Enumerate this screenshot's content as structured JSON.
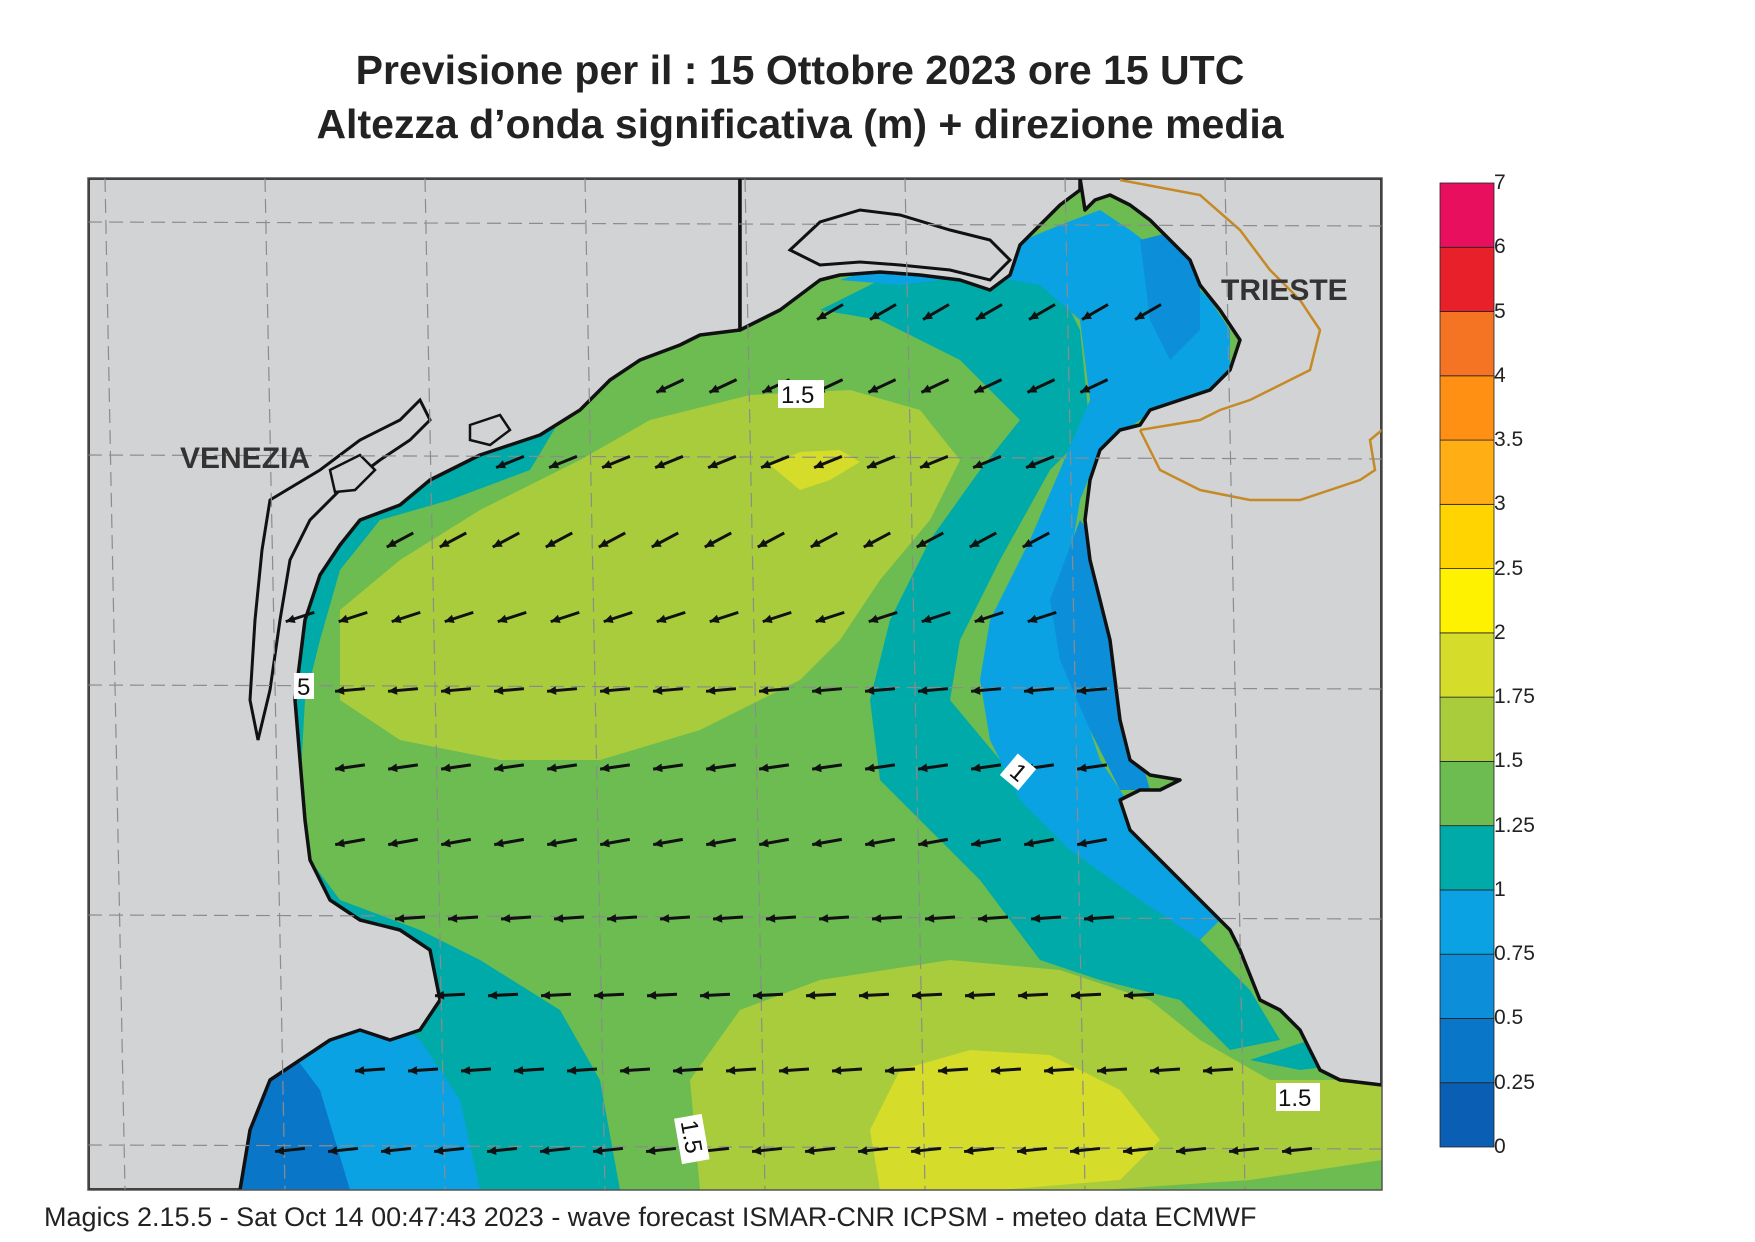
{
  "title_line1": "Previsione per il  :  15  Ottobre  2023   ore 15 UTC",
  "title_line2": "Altezza d’onda significativa (m) + direzione media",
  "cities": [
    {
      "name": "VENEZIA"
    },
    {
      "name": "TRIESTE"
    }
  ],
  "contour_labels": [
    "1.5",
    "1",
    "1.5",
    "1.5",
    "5"
  ],
  "colorbar": {
    "levels": [
      "0",
      "0.25",
      "0.5",
      "0.75",
      "1",
      "1.25",
      "1.5",
      "1.75",
      "2",
      "2.5",
      "3",
      "3.5",
      "4",
      "5",
      "6",
      "7"
    ],
    "colors": [
      "#0a5fb4",
      "#0a76c8",
      "#0c8fd8",
      "#0aa2e2",
      "#00aaa8",
      "#6cbc52",
      "#a8cc3c",
      "#d6dc2a",
      "#fff200",
      "#ffd400",
      "#ffae14",
      "#ff9014",
      "#f57424",
      "#e8202a",
      "#e8105e"
    ]
  },
  "colors": {
    "land": "#d2d3d5",
    "border": "#c58a26",
    "grid": "#8c8c8c"
  },
  "footer": "Magics 2.15.5 - Sat Oct 14 00:47:43 2023 - wave forecast  ISMAR-CNR  ICPSM - meteo data   ECMWF"
}
